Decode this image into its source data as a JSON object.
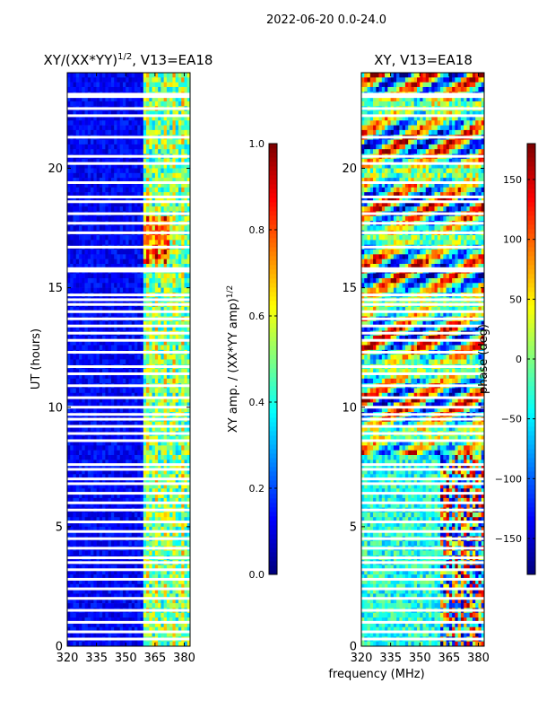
{
  "figure_title": "2022-06-20 0.0-24.0",
  "colormap": [
    "#00007f",
    "#0000ff",
    "#007fff",
    "#00ffff",
    "#7fff7f",
    "#ffff00",
    "#ff7f00",
    "#ff0000",
    "#7f0000"
  ],
  "chart_data": [
    {
      "type": "heatmap",
      "title": "XY/(XX*YY)",
      "title_sup": "1/2",
      "title_suffix": ", V13=EA18",
      "xlabel": "",
      "ylabel": "UT (hours)",
      "x_ticks": [
        320,
        335,
        350,
        365,
        380
      ],
      "y_ticks": [
        0,
        5,
        10,
        15,
        20
      ],
      "xlim": [
        320,
        383
      ],
      "ylim": [
        0,
        24
      ],
      "colorbar": {
        "label": "XY amp. / (XX*YY amp)",
        "label_sup": "1/2",
        "range": [
          0.0,
          1.0
        ],
        "ticks": [
          "0.0",
          "0.2",
          "0.4",
          "0.6",
          "0.8",
          "1.0"
        ],
        "tick_values": [
          0.0,
          0.2,
          0.4,
          0.6,
          0.8,
          1.0
        ]
      },
      "bright_band_mhz": [
        359,
        383
      ],
      "blank_rows_ut": [
        0.3,
        0.6,
        1.0,
        1.5,
        2.0,
        2.4,
        2.8,
        3.2,
        3.5,
        3.7,
        4.1,
        4.5,
        4.8,
        5.2,
        5.7,
        6.0,
        6.4,
        6.8,
        7.0,
        7.4,
        7.6,
        8.6,
        8.9,
        9.2,
        9.5,
        9.7,
        10.0,
        10.4,
        10.9,
        11.4,
        11.7,
        12.3,
        12.8,
        13.1,
        13.4,
        13.7,
        14.0,
        14.3,
        14.5,
        14.7,
        15.7,
        15.8,
        16.7,
        17.3,
        17.7,
        18.1,
        18.6,
        18.8,
        19.4,
        20.2,
        20.5,
        21.3,
        22.2,
        22.5,
        23.0,
        23.1
      ]
    },
    {
      "type": "heatmap",
      "title": "XY, V13=EA18",
      "xlabel": "frequency (MHz)",
      "ylabel": "",
      "x_ticks": [
        320,
        335,
        350,
        365,
        380
      ],
      "y_ticks": [
        0,
        5,
        10,
        15,
        20
      ],
      "xlim": [
        320,
        383
      ],
      "ylim": [
        0,
        24
      ],
      "colorbar": {
        "label": "phase (deg)",
        "range": [
          -180,
          180
        ],
        "ticks": [
          "−150",
          "−100",
          "−50",
          "0",
          "50",
          "100",
          "150"
        ],
        "tick_values": [
          -150,
          -100,
          -50,
          0,
          50,
          100,
          150
        ]
      },
      "blank_rows_ut": [
        0.3,
        0.6,
        1.0,
        1.5,
        2.0,
        2.4,
        2.8,
        3.2,
        3.5,
        3.7,
        4.1,
        4.5,
        4.8,
        5.2,
        5.7,
        6.0,
        6.4,
        6.8,
        7.0,
        7.4,
        7.6,
        8.6,
        8.9,
        9.2,
        9.5,
        9.7,
        10.0,
        10.4,
        10.9,
        11.4,
        11.7,
        12.3,
        12.8,
        13.1,
        13.4,
        13.7,
        14.0,
        14.3,
        14.5,
        14.7,
        15.7,
        15.8,
        16.7,
        17.3,
        17.7,
        18.1,
        18.6,
        18.8,
        19.4,
        20.2,
        20.5,
        21.3,
        22.2,
        22.5,
        23.0,
        23.1
      ]
    }
  ]
}
